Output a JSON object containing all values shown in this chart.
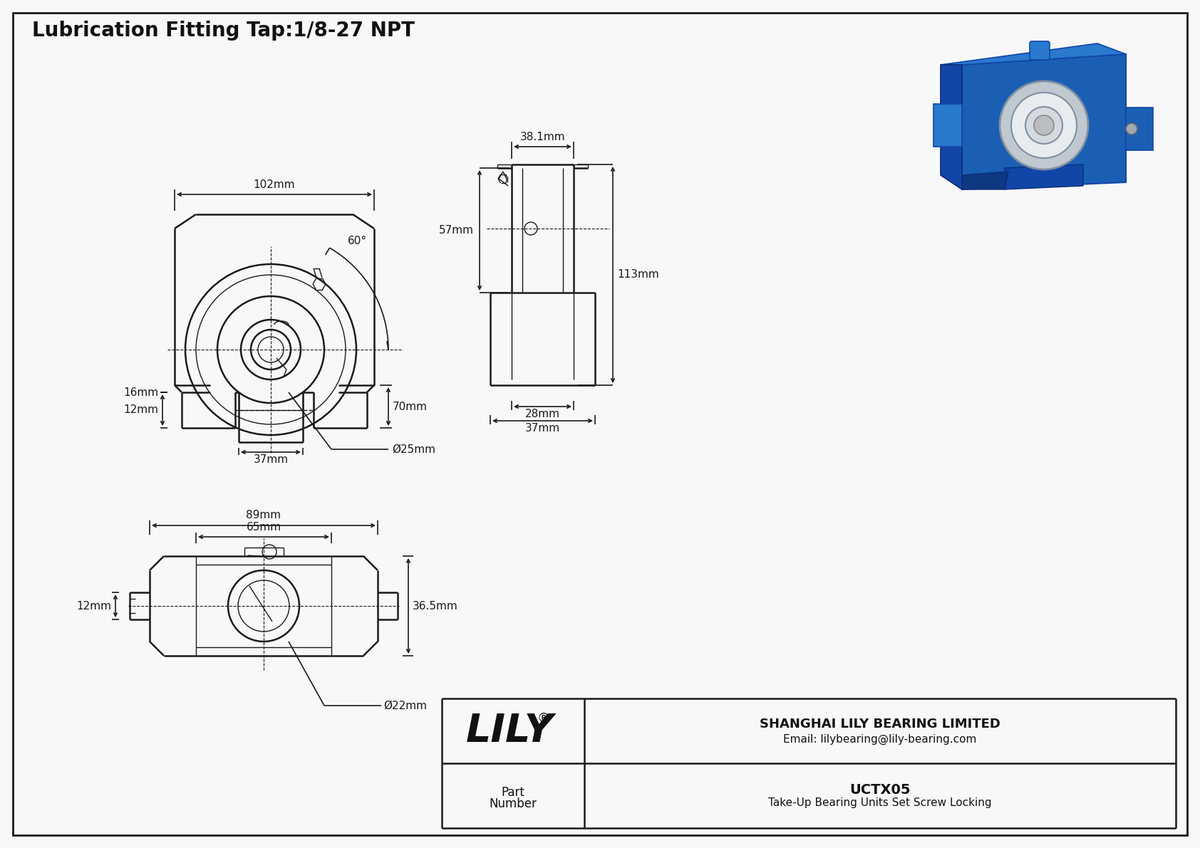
{
  "bg_color": "#f8f8f8",
  "line_color": "#1a1a1a",
  "dim_color": "#1a1a1a",
  "title_text": "Lubrication Fitting Tap:1/8-27 NPT",
  "title_fontsize": 20,
  "part_number": "UCTX05",
  "part_desc": "Take-Up Bearing Units Set Screw Locking",
  "company": "SHANGHAI LILY BEARING LIMITED",
  "email": "Email: lilybearing@lily-bearing.com",
  "lily_text": "LILY",
  "lily_reg": "®",
  "dimensions": {
    "top_width": "102mm",
    "angle": "60°",
    "left_h": "16mm",
    "bottom_left": "12mm",
    "center_width": "37mm",
    "bore": "Ø25mm",
    "right_h": "70mm",
    "side_top": "38.1mm",
    "side_mid": "57mm",
    "side_right": "113mm",
    "side_bot1": "28mm",
    "side_bot2": "37mm",
    "bot_w1": "89mm",
    "bot_w2": "65mm",
    "bot_h": "36.5mm",
    "bot_left": "12mm",
    "bot_bore": "Ø22mm"
  }
}
